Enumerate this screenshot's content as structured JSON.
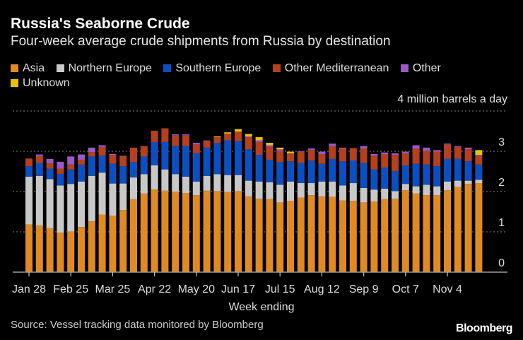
{
  "header": {
    "title": "Russia's Seaborne Crude",
    "subtitle": "Four-week average crude shipments from Russia by destination"
  },
  "footer": {
    "source": "Source: Vessel tracking data monitored by Bloomberg",
    "logo": "Bloomberg"
  },
  "chart_data": {
    "type": "bar",
    "stacked": true,
    "title": "Russia's Seaborne Crude",
    "subtitle": "Four-week average crude shipments from Russia by destination",
    "xlabel": "Week ending",
    "ylabel": "4 million barrels a day",
    "ylim": [
      0,
      4
    ],
    "yticks": [
      "0",
      "1",
      "2",
      "3",
      "4"
    ],
    "grid": true,
    "legend_position": "top",
    "x_tick_labels": [
      "Jan 28",
      "Feb 25",
      "Mar 25",
      "Apr 22",
      "May 20",
      "Jun 17",
      "Jul 15",
      "Aug 12",
      "Sep 9",
      "Oct 7",
      "Nov 4"
    ],
    "categories": [
      "Jan 28",
      "Feb 4",
      "Feb 11",
      "Feb 18",
      "Feb 25",
      "Mar 4",
      "Mar 11",
      "Mar 18",
      "Mar 25",
      "Apr 1",
      "Apr 8",
      "Apr 15",
      "Apr 22",
      "Apr 29",
      "May 6",
      "May 13",
      "May 20",
      "May 27",
      "Jun 3",
      "Jun 10",
      "Jun 17",
      "Jun 24",
      "Jul 1",
      "Jul 8",
      "Jul 15",
      "Jul 22",
      "Jul 29",
      "Aug 5",
      "Aug 12",
      "Aug 19",
      "Aug 26",
      "Sep 2",
      "Sep 9",
      "Sep 16",
      "Sep 23",
      "Sep 30",
      "Oct 7",
      "Oct 14",
      "Oct 21",
      "Oct 28",
      "Nov 4",
      "Nov 11",
      "Nov 18",
      "Nov 25"
    ],
    "series": [
      {
        "name": "Asia",
        "color": "#e08a23",
        "values": [
          1.18,
          1.16,
          1.09,
          0.98,
          1.01,
          1.12,
          1.26,
          1.43,
          1.4,
          1.54,
          1.81,
          1.95,
          2.05,
          2.02,
          2.0,
          1.96,
          1.91,
          2.02,
          2.01,
          1.99,
          2.01,
          1.88,
          1.82,
          1.81,
          1.73,
          1.77,
          1.85,
          1.91,
          1.88,
          1.87,
          1.78,
          1.77,
          1.73,
          1.75,
          1.81,
          1.82,
          2.03,
          1.95,
          1.91,
          1.91,
          2.03,
          2.11,
          2.19,
          2.21
        ]
      },
      {
        "name": "Northern Europe",
        "color": "#c8c8c8",
        "values": [
          1.19,
          1.23,
          1.22,
          1.17,
          1.18,
          1.13,
          1.13,
          1.04,
          0.8,
          0.66,
          0.54,
          0.48,
          0.6,
          0.53,
          0.43,
          0.41,
          0.34,
          0.37,
          0.42,
          0.42,
          0.4,
          0.39,
          0.43,
          0.42,
          0.44,
          0.48,
          0.36,
          0.3,
          0.37,
          0.38,
          0.37,
          0.44,
          0.36,
          0.3,
          0.26,
          0.19,
          0.16,
          0.18,
          0.26,
          0.22,
          0.22,
          0.16,
          0.08,
          0.08
        ]
      },
      {
        "name": "Southern Europe",
        "color": "#0a50c2",
        "values": [
          0.26,
          0.32,
          0.26,
          0.29,
          0.36,
          0.42,
          0.48,
          0.42,
          0.49,
          0.43,
          0.38,
          0.44,
          0.58,
          0.68,
          0.7,
          0.76,
          0.7,
          0.7,
          0.78,
          0.86,
          0.84,
          0.78,
          0.66,
          0.56,
          0.56,
          0.5,
          0.5,
          0.56,
          0.44,
          0.56,
          0.6,
          0.56,
          0.62,
          0.5,
          0.52,
          0.5,
          0.46,
          0.56,
          0.5,
          0.5,
          0.56,
          0.54,
          0.48,
          0.38
        ]
      },
      {
        "name": "Other Mediterranean",
        "color": "#b5401e",
        "values": [
          0.19,
          0.17,
          0.13,
          0.13,
          0.12,
          0.12,
          0.11,
          0.22,
          0.22,
          0.25,
          0.36,
          0.26,
          0.28,
          0.34,
          0.27,
          0.27,
          0.22,
          0.17,
          0.14,
          0.16,
          0.24,
          0.3,
          0.32,
          0.32,
          0.28,
          0.2,
          0.28,
          0.26,
          0.24,
          0.32,
          0.32,
          0.31,
          0.36,
          0.34,
          0.34,
          0.4,
          0.3,
          0.38,
          0.34,
          0.36,
          0.36,
          0.3,
          0.3,
          0.22
        ]
      },
      {
        "name": "Other",
        "color": "#9b59c8",
        "values": [
          0,
          0.04,
          0.11,
          0.17,
          0.2,
          0.13,
          0.11,
          0.04,
          0.02,
          0.01,
          0,
          0,
          0,
          0,
          0.02,
          0.02,
          0.04,
          0.01,
          0,
          0.01,
          0,
          0.02,
          0.04,
          0.04,
          0.04,
          0,
          0.01,
          0.04,
          0.06,
          0.06,
          0.02,
          0,
          0.06,
          0.04,
          0.04,
          0.04,
          0.04,
          0.08,
          0.08,
          0.04,
          0.02,
          0.02,
          0.04,
          0.02
        ]
      },
      {
        "name": "Unknown",
        "color": "#e3c300",
        "values": [
          0,
          0,
          0,
          0,
          0,
          0,
          0,
          0,
          0,
          0,
          0,
          0,
          0,
          0,
          0,
          0,
          0,
          0,
          0.02,
          0.03,
          0.06,
          0.06,
          0.08,
          0.06,
          0.04,
          0.04,
          0,
          0,
          0,
          0,
          0,
          0,
          0,
          0,
          0,
          0,
          0,
          0,
          0,
          0,
          0,
          0,
          0,
          0.12
        ]
      }
    ]
  }
}
